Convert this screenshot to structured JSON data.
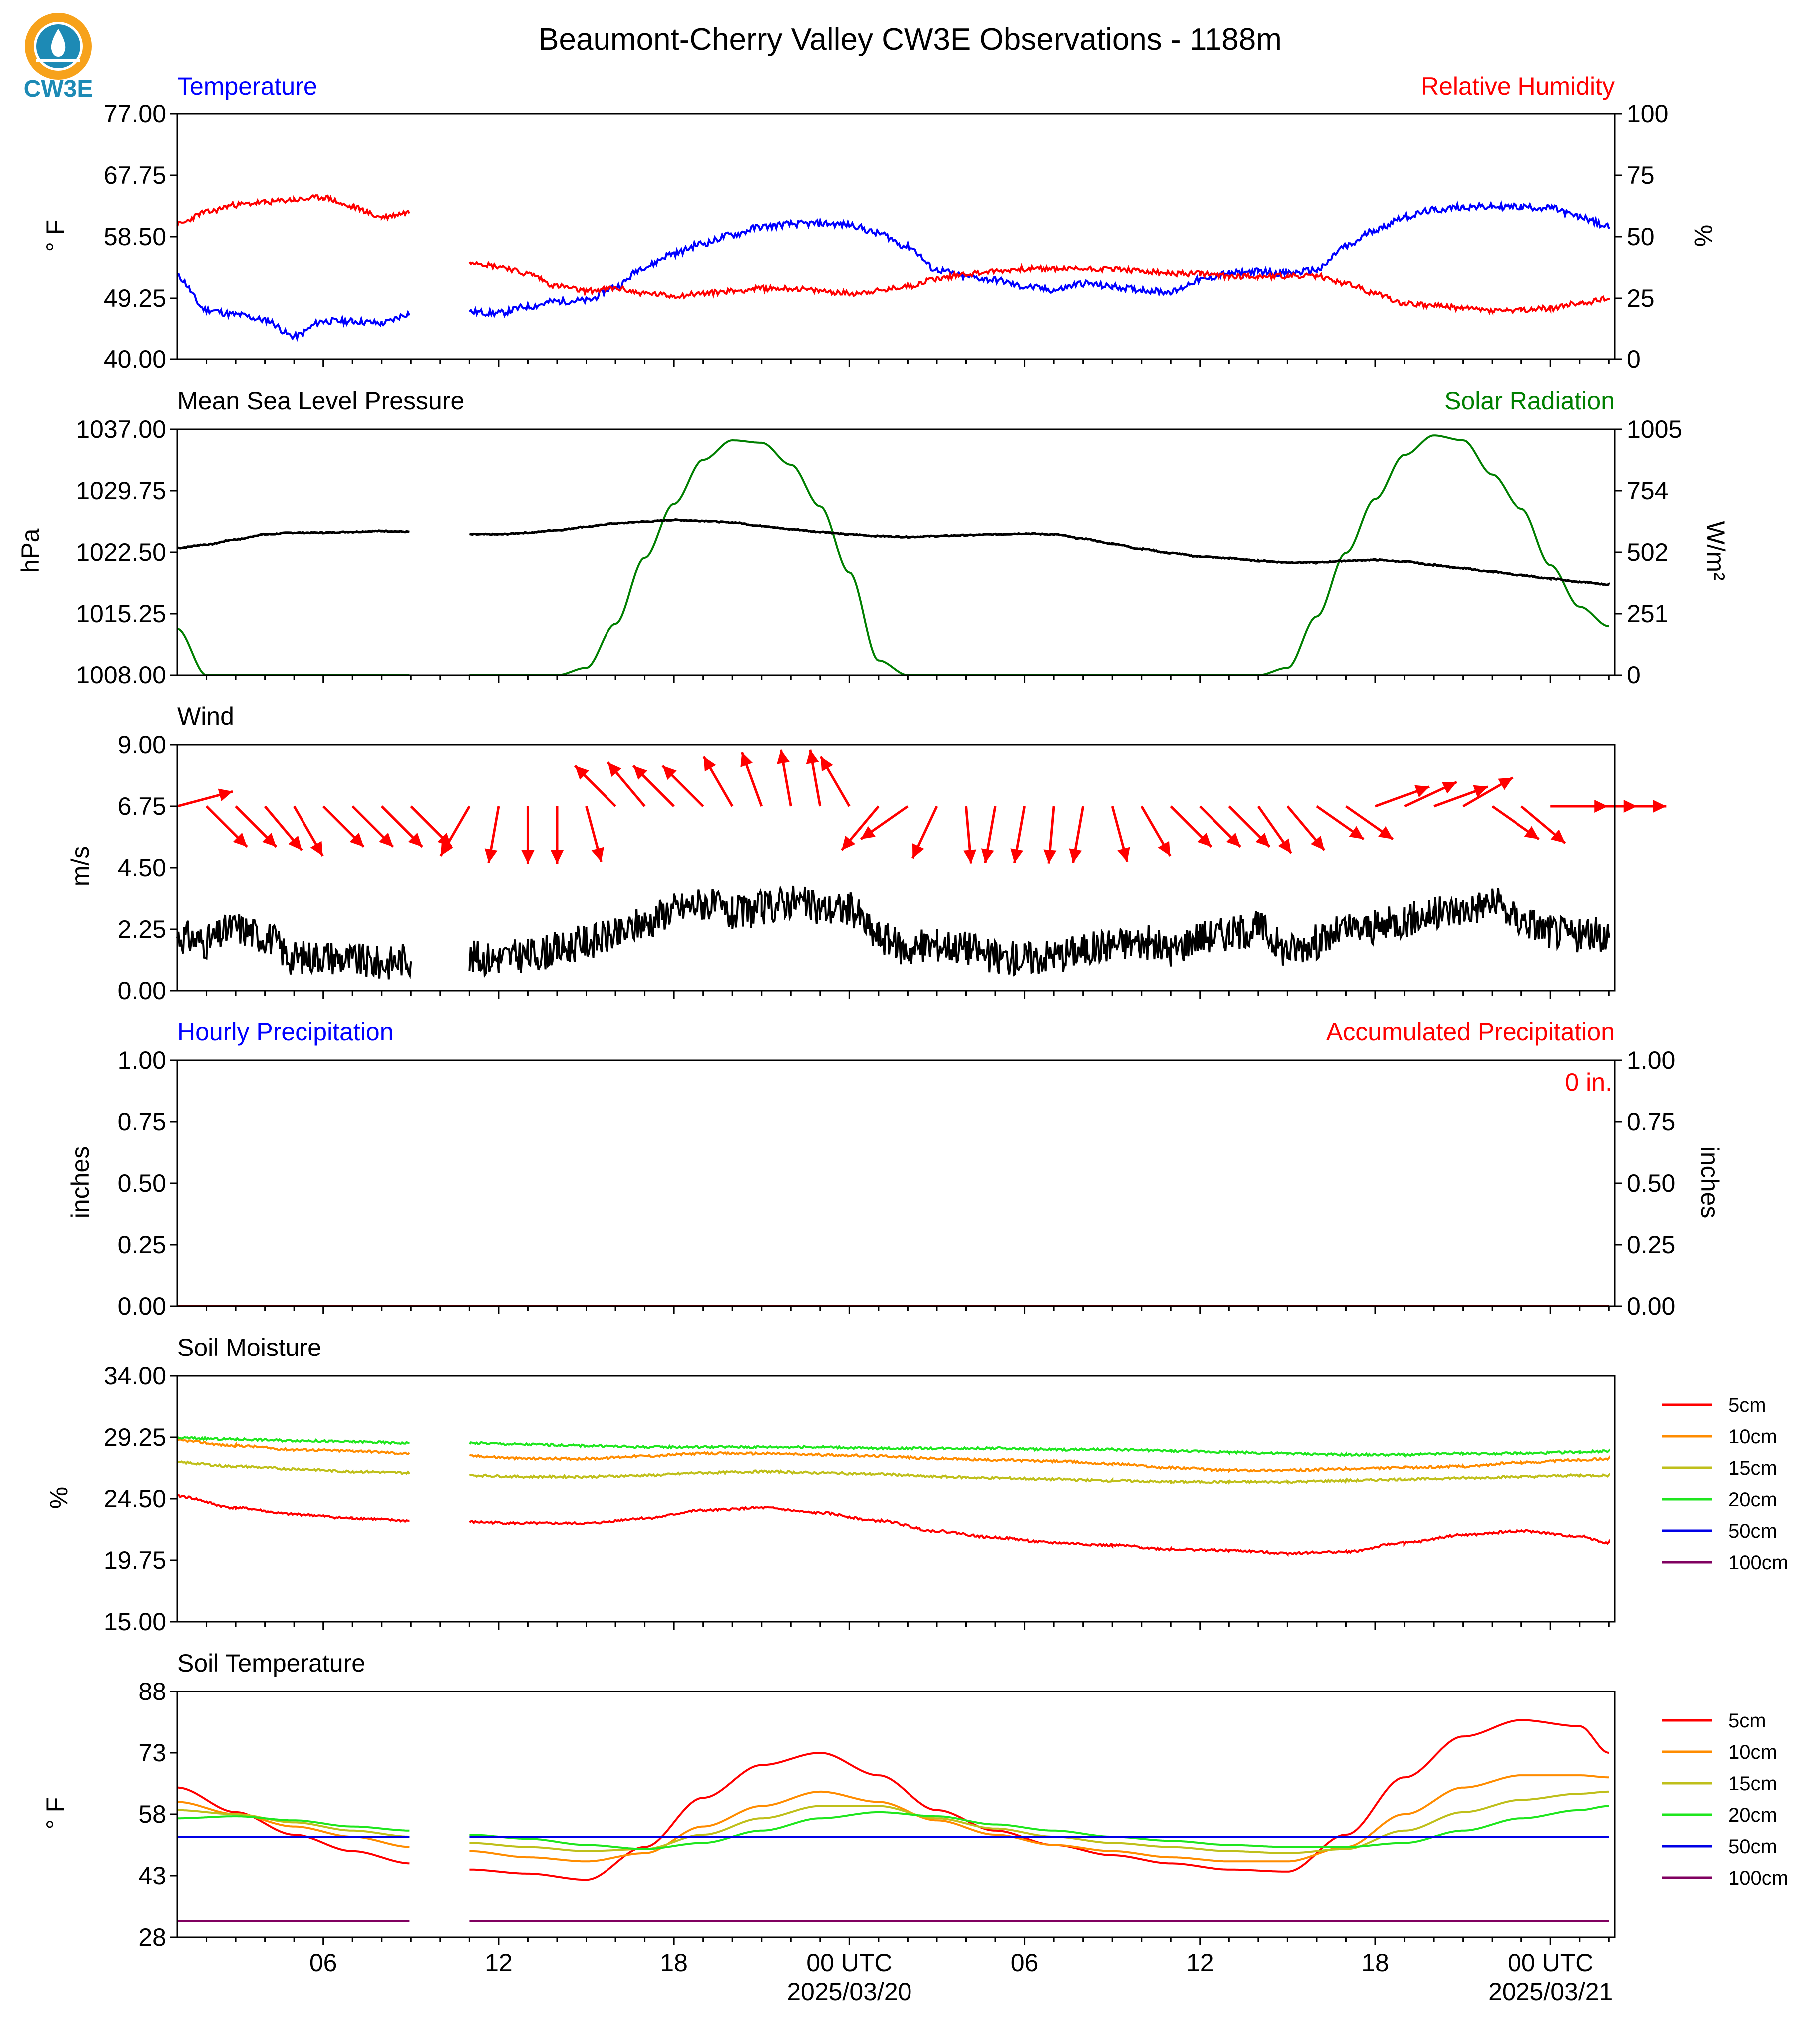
{
  "header": {
    "title": "Beaumont-Cherry Valley CW3E Observations - 1188m",
    "logo_text": "CW3E"
  },
  "colors": {
    "temperature": "#0000ff",
    "humidity": "#ff0000",
    "pressure": "#000000",
    "solar": "#007f00",
    "wind_arrows": "#ff0000",
    "wind_speed": "#000000",
    "logo_orange": "#f7a21b",
    "logo_blue": "#1d8ab5"
  },
  "time_axis": {
    "start": "2025-03-19 01 UTC",
    "end": "2025-03-21 02 UTC",
    "ticks": [
      {
        "hour": 6,
        "label": "06",
        "sub": ""
      },
      {
        "hour": 12,
        "label": "12",
        "sub": ""
      },
      {
        "hour": 18,
        "label": "18",
        "sub": ""
      },
      {
        "hour": 24,
        "label": "00 UTC",
        "sub": "2025/03/20"
      },
      {
        "hour": 30,
        "label": "06",
        "sub": ""
      },
      {
        "hour": 36,
        "label": "12",
        "sub": ""
      },
      {
        "hour": 42,
        "label": "18",
        "sub": ""
      },
      {
        "hour": 48,
        "label": "00 UTC",
        "sub": "2025/03/21"
      }
    ]
  },
  "panels": {
    "temp_rh": {
      "left_title": "Temperature",
      "right_title": "Relative Humidity",
      "ylabel_left": "° F",
      "ylabel_right": "%",
      "left_ticks": [
        "77.00",
        "67.75",
        "58.50",
        "49.25",
        "40.00"
      ],
      "right_ticks": [
        "100",
        "75",
        "50",
        "25",
        "0"
      ]
    },
    "pressure_solar": {
      "left_title": "Mean Sea Level Pressure",
      "right_title": "Solar Radiation",
      "ylabel_left": "hPa",
      "ylabel_right": "W/m²",
      "left_ticks": [
        "1037.00",
        "1029.75",
        "1022.50",
        "1015.25",
        "1008.00"
      ],
      "right_ticks": [
        "1005",
        "754",
        "502",
        "251",
        "0"
      ]
    },
    "wind": {
      "left_title": "Wind",
      "ylabel_left": "m/s",
      "left_ticks": [
        "9.00",
        "6.75",
        "4.50",
        "2.25",
        "0.00"
      ]
    },
    "precip": {
      "left_title": "Hourly Precipitation",
      "right_title": "Accumulated Precipitation",
      "ylabel_left": "inches",
      "ylabel_right": "inches",
      "left_ticks": [
        "1.00",
        "0.75",
        "0.50",
        "0.25",
        "0.00"
      ],
      "right_ticks": [
        "1.00",
        "0.75",
        "0.50",
        "0.25",
        "0.00"
      ],
      "total_label": "0 in."
    },
    "soil_moisture": {
      "left_title": "Soil Moisture",
      "ylabel_left": "%",
      "left_ticks": [
        "34.00",
        "29.25",
        "24.50",
        "19.75",
        "15.00"
      ]
    },
    "soil_temp": {
      "left_title": "Soil Temperature",
      "ylabel_left": "° F",
      "left_ticks": [
        "88",
        "73",
        "58",
        "43",
        "28"
      ]
    }
  },
  "legend": [
    {
      "label": "5cm",
      "color": "#ff0000"
    },
    {
      "label": "10cm",
      "color": "#ff8c00"
    },
    {
      "label": "15cm",
      "color": "#bfbf1a"
    },
    {
      "label": "20cm",
      "color": "#1ee61e"
    },
    {
      "label": "50cm",
      "color": "#0000e6"
    },
    {
      "label": "100cm",
      "color": "#800060"
    }
  ],
  "chart_data": [
    {
      "type": "line",
      "title": "Temperature / Relative Humidity",
      "x_hours_utc": [
        1,
        2,
        3,
        4,
        5,
        6,
        7,
        8,
        9,
        10,
        11,
        12,
        13,
        14,
        15,
        16,
        17,
        18,
        19,
        20,
        21,
        22,
        23,
        24,
        25,
        26,
        27,
        28,
        29,
        30,
        31,
        32,
        33,
        34,
        35,
        36,
        37,
        38,
        39,
        40,
        41,
        42,
        43,
        44,
        45,
        46,
        47,
        48,
        49,
        50
      ],
      "series": [
        {
          "name": "Temperature",
          "unit": "°F",
          "ylim": [
            40,
            77
          ],
          "values": [
            52.5,
            47.5,
            46.8,
            46.0,
            43.5,
            45.8,
            45.8,
            45.5,
            47.0,
            null,
            47.2,
            47.0,
            48.0,
            48.8,
            48.9,
            51.0,
            54.0,
            56.0,
            57.5,
            58.8,
            60.0,
            60.4,
            60.5,
            60.3,
            59.0,
            57.0,
            53.5,
            52.5,
            52.0,
            51.0,
            50.5,
            51.5,
            51.0,
            50.5,
            50.2,
            52.0,
            53.0,
            53.3,
            53.0,
            53.5,
            57.0,
            59.5,
            61.5,
            62.5,
            63.0,
            63.0,
            63.0,
            62.8,
            61.5,
            60.0
          ]
        },
        {
          "name": "Relative Humidity",
          "unit": "%",
          "ylim": [
            0,
            100
          ],
          "values": [
            55,
            60,
            63,
            64,
            65,
            66,
            62,
            58,
            60,
            null,
            40,
            38,
            35,
            30,
            28,
            29,
            27,
            26,
            27,
            28,
            29,
            29,
            28,
            27,
            28,
            30,
            33,
            35,
            36,
            37,
            37,
            37,
            37,
            36,
            35,
            35,
            34,
            34,
            34,
            34,
            31,
            27,
            23,
            22,
            21,
            20,
            20,
            21,
            23,
            25
          ]
        }
      ]
    },
    {
      "type": "line",
      "title": "Mean Sea Level Pressure / Solar Radiation",
      "x_hours_utc": [
        1,
        2,
        3,
        4,
        5,
        6,
        7,
        8,
        9,
        10,
        11,
        12,
        13,
        14,
        15,
        16,
        17,
        18,
        19,
        20,
        21,
        22,
        23,
        24,
        25,
        26,
        27,
        28,
        29,
        30,
        31,
        32,
        33,
        34,
        35,
        36,
        37,
        38,
        39,
        40,
        41,
        42,
        43,
        44,
        45,
        46,
        47,
        48,
        49,
        50
      ],
      "series": [
        {
          "name": "Mean Sea Level Pressure",
          "unit": "hPa",
          "ylim": [
            1008,
            1037
          ],
          "values": [
            1023.0,
            1023.4,
            1024.0,
            1024.6,
            1024.8,
            1024.8,
            1024.9,
            1025.0,
            1024.9,
            null,
            1024.6,
            1024.6,
            1024.8,
            1025.1,
            1025.5,
            1025.9,
            1026.1,
            1026.3,
            1026.2,
            1026.0,
            1025.6,
            1025.2,
            1024.9,
            1024.6,
            1024.4,
            1024.3,
            1024.4,
            1024.5,
            1024.6,
            1024.7,
            1024.6,
            1024.1,
            1023.5,
            1022.9,
            1022.4,
            1022.0,
            1021.8,
            1021.5,
            1021.3,
            1021.3,
            1021.5,
            1021.6,
            1021.4,
            1021.0,
            1020.6,
            1020.2,
            1019.8,
            1019.4,
            1019.0,
            1018.7
          ]
        },
        {
          "name": "Solar Radiation",
          "unit": "W/m²",
          "ylim": [
            0,
            1005
          ],
          "values": [
            190,
            0,
            0,
            0,
            0,
            0,
            0,
            0,
            0,
            null,
            0,
            0,
            0,
            0,
            30,
            210,
            480,
            700,
            880,
            960,
            950,
            860,
            690,
            420,
            60,
            0,
            0,
            0,
            0,
            0,
            0,
            0,
            0,
            0,
            0,
            0,
            0,
            0,
            30,
            240,
            500,
            720,
            900,
            980,
            960,
            820,
            680,
            450,
            280,
            200
          ]
        }
      ]
    },
    {
      "type": "line",
      "title": "Wind",
      "x_hours_utc": [
        1,
        2,
        3,
        4,
        5,
        6,
        7,
        8,
        9,
        10,
        11,
        12,
        13,
        14,
        15,
        16,
        17,
        18,
        19,
        20,
        21,
        22,
        23,
        24,
        25,
        26,
        27,
        28,
        29,
        30,
        31,
        32,
        33,
        34,
        35,
        36,
        37,
        38,
        39,
        40,
        41,
        42,
        43,
        44,
        45,
        46,
        47,
        48,
        49,
        50
      ],
      "series": [
        {
          "name": "Wind Speed",
          "unit": "m/s",
          "ylim": [
            0,
            9
          ],
          "values": [
            2.0,
            1.8,
            2.3,
            2.0,
            1.2,
            1.3,
            1.1,
            1.0,
            1.2,
            null,
            1.2,
            1.2,
            1.3,
            1.5,
            1.8,
            2.0,
            2.5,
            3.0,
            3.2,
            2.8,
            3.0,
            3.3,
            3.0,
            3.0,
            2.0,
            1.5,
            1.7,
            1.6,
            1.2,
            1.2,
            1.3,
            1.5,
            1.7,
            1.8,
            1.5,
            2.0,
            2.1,
            2.3,
            1.5,
            1.8,
            2.2,
            2.3,
            2.6,
            2.8,
            3.0,
            3.2,
            2.6,
            2.2,
            2.0,
            2.1
          ]
        },
        {
          "name": "Wind Direction",
          "unit": "arrow toward (compass deg)",
          "values": [
            75,
            135,
            135,
            140,
            150,
            135,
            135,
            135,
            135,
            null,
            210,
            190,
            180,
            180,
            165,
            315,
            320,
            315,
            315,
            330,
            340,
            350,
            350,
            330,
            220,
            235,
            205,
            175,
            190,
            190,
            185,
            190,
            165,
            150,
            135,
            135,
            135,
            145,
            140,
            125,
            125,
            70,
            65,
            70,
            60,
            125,
            130,
            90,
            90,
            90
          ]
        }
      ]
    },
    {
      "type": "line",
      "title": "Hourly / Accumulated Precipitation",
      "x_hours_utc": [
        1,
        50
      ],
      "series": [
        {
          "name": "Hourly Precipitation",
          "unit": "inches",
          "ylim": [
            0,
            1
          ],
          "values": [
            0,
            0
          ]
        },
        {
          "name": "Accumulated Precipitation",
          "unit": "inches",
          "ylim": [
            0,
            1
          ],
          "values": [
            0,
            0
          ]
        }
      ]
    },
    {
      "type": "line",
      "title": "Soil Moisture",
      "ylim": [
        15,
        34
      ],
      "x_hours_utc": [
        1,
        3,
        5,
        7,
        9,
        10,
        11,
        13,
        15,
        17,
        19,
        21,
        23,
        25,
        27,
        29,
        31,
        33,
        35,
        37,
        39,
        41,
        43,
        45,
        47,
        49,
        50
      ],
      "series": [
        {
          "name": "5cm",
          "values": [
            24.7,
            23.8,
            23.3,
            23.0,
            22.8,
            null,
            22.7,
            22.6,
            22.6,
            23.0,
            23.6,
            23.8,
            23.4,
            22.8,
            22.0,
            21.5,
            21.1,
            20.9,
            20.6,
            20.5,
            20.3,
            20.4,
            21.1,
            21.7,
            22.0,
            21.6,
            21.1
          ]
        },
        {
          "name": "10cm",
          "values": [
            29.0,
            28.6,
            28.3,
            28.2,
            28.0,
            null,
            27.8,
            27.6,
            27.6,
            27.8,
            28.0,
            28.0,
            27.9,
            27.8,
            27.6,
            27.5,
            27.4,
            27.2,
            26.9,
            26.7,
            26.7,
            26.8,
            26.9,
            27.0,
            27.3,
            27.5,
            27.6
          ]
        },
        {
          "name": "15cm",
          "values": [
            27.3,
            27.0,
            26.8,
            26.6,
            26.5,
            null,
            26.3,
            26.2,
            26.2,
            26.3,
            26.5,
            26.6,
            26.5,
            26.4,
            26.2,
            26.1,
            26.0,
            25.9,
            25.8,
            25.8,
            25.8,
            25.9,
            26.0,
            26.1,
            26.2,
            26.3,
            26.3
          ]
        },
        {
          "name": "20cm",
          "values": [
            29.2,
            29.1,
            29.0,
            28.9,
            28.8,
            null,
            28.8,
            28.7,
            28.6,
            28.5,
            28.5,
            28.5,
            28.5,
            28.4,
            28.4,
            28.4,
            28.3,
            28.3,
            28.2,
            28.1,
            28.0,
            27.9,
            27.9,
            28.0,
            28.0,
            28.1,
            28.2
          ]
        },
        {
          "name": "50cm",
          "values": []
        },
        {
          "name": "100cm",
          "values": []
        }
      ]
    },
    {
      "type": "line",
      "title": "Soil Temperature",
      "ylim": [
        28,
        88
      ],
      "x_hours_utc": [
        1,
        3,
        5,
        7,
        9,
        10,
        11,
        13,
        15,
        17,
        19,
        21,
        23,
        25,
        27,
        29,
        31,
        33,
        35,
        37,
        39,
        41,
        43,
        45,
        47,
        49,
        50
      ],
      "series": [
        {
          "name": "5cm",
          "values": [
            64.5,
            58.5,
            53.0,
            49.0,
            46.0,
            null,
            44.5,
            43.5,
            42.0,
            50.0,
            62.0,
            70.0,
            73.0,
            67.5,
            59.0,
            54.0,
            50.5,
            48.0,
            46.0,
            44.5,
            44.0,
            53.0,
            67.0,
            77.0,
            81.0,
            79.5,
            73.0
          ]
        },
        {
          "name": "10cm",
          "values": [
            61.0,
            58.0,
            55.0,
            52.5,
            50.0,
            null,
            49.0,
            47.5,
            46.5,
            48.5,
            55.0,
            60.0,
            63.5,
            61.0,
            56.5,
            53.0,
            50.5,
            49.0,
            47.5,
            46.5,
            46.5,
            50.0,
            58.0,
            64.5,
            67.5,
            67.5,
            67.0
          ]
        },
        {
          "name": "15cm",
          "values": [
            59.0,
            58.0,
            56.0,
            54.0,
            52.5,
            null,
            51.0,
            50.0,
            49.0,
            49.5,
            53.0,
            57.0,
            60.0,
            60.0,
            57.0,
            54.5,
            52.5,
            51.0,
            50.0,
            49.0,
            48.5,
            49.5,
            54.0,
            58.5,
            61.5,
            63.0,
            63.5
          ]
        },
        {
          "name": "20cm",
          "values": [
            57.0,
            57.5,
            56.5,
            55.0,
            54.0,
            null,
            53.0,
            52.0,
            50.5,
            49.5,
            51.0,
            54.0,
            57.0,
            58.5,
            57.5,
            55.5,
            54.0,
            52.5,
            51.5,
            50.5,
            50.0,
            50.0,
            51.0,
            54.0,
            57.0,
            59.0,
            60.0
          ]
        },
        {
          "name": "50cm",
          "values": [
            52.5,
            52.5,
            52.5,
            52.5,
            52.5,
            null,
            52.5,
            52.5,
            52.5,
            52.5,
            52.5,
            52.5,
            52.5,
            52.5,
            52.5,
            52.5,
            52.5,
            52.5,
            52.5,
            52.5,
            52.5,
            52.5,
            52.5,
            52.5,
            52.5,
            52.5,
            52.5
          ]
        },
        {
          "name": "100cm",
          "values": [
            32.0,
            32.0,
            32.0,
            32.0,
            32.0,
            null,
            32.0,
            32.0,
            32.0,
            32.0,
            32.0,
            32.0,
            32.0,
            32.0,
            32.0,
            32.0,
            32.0,
            32.0,
            32.0,
            32.0,
            32.0,
            32.0,
            32.0,
            32.0,
            32.0,
            32.0,
            32.0
          ]
        }
      ]
    }
  ]
}
